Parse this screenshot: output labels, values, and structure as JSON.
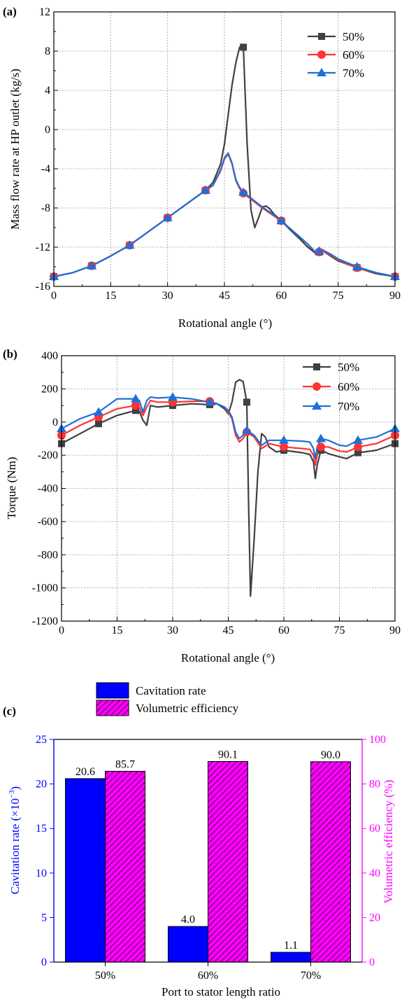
{
  "chart_data": [
    {
      "panel": "(a)",
      "type": "line",
      "xlabel": "Rotational angle (°)",
      "ylabel": "Mass flow rate at HP outlet (kg/s)",
      "xlim": [
        0,
        90
      ],
      "ylim": [
        -16,
        12
      ],
      "xticks": [
        0,
        15,
        30,
        45,
        60,
        75,
        90
      ],
      "yticks": [
        -16,
        -12,
        -8,
        -4,
        0,
        4,
        8,
        12
      ],
      "grid": true,
      "legend": "top-right",
      "series": [
        {
          "name": "50%",
          "color": "#404040",
          "marker": "square",
          "x": [
            0,
            5,
            10,
            15,
            20,
            25,
            30,
            35,
            40,
            42,
            44,
            45,
            46,
            47,
            48,
            49,
            50,
            51,
            52,
            53,
            54,
            55,
            56,
            57,
            58,
            60,
            62,
            65,
            67,
            68,
            69,
            70,
            71,
            73,
            75,
            80,
            85,
            90
          ],
          "y": [
            -15.0,
            -14.6,
            -13.9,
            -12.9,
            -11.8,
            -10.4,
            -9.0,
            -7.6,
            -6.2,
            -5.4,
            -3.5,
            -1.5,
            1.5,
            4.5,
            6.8,
            8.4,
            8.4,
            -1.5,
            -8.2,
            -10.0,
            -9.0,
            -7.9,
            -7.8,
            -8.1,
            -8.6,
            -9.3,
            -10.1,
            -11.2,
            -12.0,
            -12.3,
            -12.6,
            -12.5,
            -12.4,
            -12.9,
            -13.4,
            -14.1,
            -14.7,
            -15.0
          ],
          "marker_x": [
            0,
            10,
            20,
            30,
            40,
            50,
            60,
            70,
            80,
            90
          ]
        },
        {
          "name": "60%",
          "color": "#ff3333",
          "marker": "circle",
          "x": [
            0,
            5,
            10,
            15,
            20,
            25,
            30,
            35,
            40,
            42,
            44,
            45,
            46,
            47,
            48,
            49,
            50,
            52,
            55,
            58,
            60,
            62,
            65,
            67,
            68,
            69,
            70,
            71,
            73,
            75,
            80,
            85,
            90
          ],
          "y": [
            -15.0,
            -14.6,
            -13.9,
            -12.9,
            -11.8,
            -10.4,
            -9.0,
            -7.6,
            -6.2,
            -5.7,
            -4.2,
            -3.0,
            -2.5,
            -3.5,
            -5.2,
            -6.0,
            -6.5,
            -7.1,
            -8.0,
            -8.8,
            -9.3,
            -10.0,
            -11.0,
            -11.7,
            -12.1,
            -12.5,
            -12.5,
            -12.4,
            -12.8,
            -13.3,
            -14.1,
            -14.6,
            -15.0
          ],
          "marker_x": [
            0,
            10,
            20,
            30,
            40,
            50,
            60,
            70,
            80,
            90
          ]
        },
        {
          "name": "70%",
          "color": "#1e6fd9",
          "marker": "triangle",
          "x": [
            0,
            5,
            10,
            15,
            20,
            25,
            30,
            35,
            40,
            42,
            44,
            45,
            46,
            47,
            48,
            49,
            50,
            52,
            55,
            58,
            60,
            62,
            65,
            67,
            68,
            69,
            70,
            71,
            73,
            75,
            80,
            85,
            90
          ],
          "y": [
            -15.0,
            -14.6,
            -13.9,
            -12.9,
            -11.8,
            -10.4,
            -9.0,
            -7.6,
            -6.2,
            -5.7,
            -4.1,
            -2.9,
            -2.4,
            -3.4,
            -5.1,
            -5.9,
            -6.4,
            -7.0,
            -7.9,
            -8.7,
            -9.3,
            -10.0,
            -11.0,
            -11.7,
            -12.1,
            -12.5,
            -12.4,
            -12.3,
            -12.7,
            -13.2,
            -14.0,
            -14.6,
            -15.0
          ],
          "marker_x": [
            0,
            10,
            20,
            30,
            40,
            50,
            60,
            70,
            80,
            90
          ]
        }
      ]
    },
    {
      "panel": "(b)",
      "type": "line",
      "xlabel": "Rotational angle (°)",
      "ylabel": "Torque (Nm)",
      "xlim": [
        0,
        90
      ],
      "ylim": [
        -1200,
        400
      ],
      "xticks": [
        0,
        15,
        30,
        45,
        60,
        75,
        90
      ],
      "yticks": [
        -1200,
        -1000,
        -800,
        -600,
        -400,
        -200,
        0,
        200,
        400
      ],
      "grid": true,
      "legend": "top-right",
      "series": [
        {
          "name": "50%",
          "color": "#404040",
          "marker": "square",
          "x": [
            0,
            5,
            10,
            15,
            20,
            21,
            22,
            23,
            24,
            26,
            30,
            35,
            40,
            42,
            44,
            45,
            46,
            47,
            48,
            49,
            50,
            50.5,
            51,
            52,
            53,
            54,
            55,
            56,
            58,
            60,
            65,
            67,
            68,
            68.5,
            69,
            70,
            72,
            75,
            77,
            80,
            85,
            90
          ],
          "y": [
            -130,
            -70,
            -10,
            40,
            70,
            65,
            10,
            -20,
            100,
            90,
            100,
            110,
            105,
            110,
            80,
            50,
            120,
            240,
            255,
            245,
            120,
            -500,
            -1050,
            -700,
            -300,
            -70,
            -90,
            -150,
            -180,
            -170,
            -185,
            -195,
            -240,
            -340,
            -260,
            -170,
            -190,
            -210,
            -220,
            -185,
            -170,
            -130
          ],
          "marker_x": [
            0,
            10,
            20,
            30,
            40,
            50,
            60,
            70,
            80,
            90
          ]
        },
        {
          "name": "60%",
          "color": "#ff3333",
          "marker": "circle",
          "x": [
            0,
            5,
            10,
            15,
            20,
            21,
            22,
            23,
            24,
            26,
            30,
            35,
            40,
            42,
            44,
            45,
            46,
            47,
            48,
            49,
            50,
            52,
            54,
            56,
            58,
            60,
            65,
            67,
            68,
            68.5,
            69,
            70,
            72,
            75,
            77,
            80,
            85,
            90
          ],
          "y": [
            -80,
            -20,
            30,
            80,
            100,
            90,
            40,
            90,
            130,
            120,
            120,
            125,
            125,
            110,
            90,
            60,
            20,
            -80,
            -120,
            -100,
            -60,
            -90,
            -160,
            -130,
            -140,
            -150,
            -160,
            -165,
            -200,
            -260,
            -200,
            -150,
            -150,
            -175,
            -180,
            -150,
            -130,
            -80
          ],
          "marker_x": [
            0,
            10,
            20,
            30,
            40,
            50,
            60,
            70,
            80,
            90
          ]
        },
        {
          "name": "70%",
          "color": "#1e6fd9",
          "marker": "triangle",
          "x": [
            0,
            5,
            10,
            15,
            20,
            21,
            22,
            23,
            24,
            26,
            30,
            35,
            40,
            42,
            44,
            45,
            46,
            47,
            48,
            49,
            50,
            52,
            54,
            56,
            58,
            60,
            65,
            67,
            68,
            68.5,
            69,
            70,
            72,
            75,
            77,
            80,
            85,
            90
          ],
          "y": [
            -40,
            20,
            60,
            140,
            140,
            130,
            60,
            130,
            150,
            145,
            150,
            140,
            120,
            110,
            90,
            70,
            30,
            -60,
            -100,
            -80,
            -50,
            -80,
            -140,
            -110,
            -110,
            -110,
            -115,
            -120,
            -160,
            -220,
            -150,
            -100,
            -110,
            -140,
            -145,
            -110,
            -90,
            -40
          ],
          "marker_x": [
            0,
            10,
            20,
            30,
            40,
            50,
            60,
            70,
            80,
            90
          ]
        }
      ]
    },
    {
      "panel": "(c)",
      "type": "bar",
      "xlabel": "Port to stator length ratio",
      "ylabel_left": "Cavitation rate (×10",
      "ylabel_left_sup": "−3",
      "ylabel_left_end": ")",
      "ylabel_right": "Volumetric efficiency (%)",
      "categories": [
        "50%",
        "60%",
        "70%"
      ],
      "ylim_left": [
        0,
        25
      ],
      "ylim_right": [
        0,
        100
      ],
      "yticks_left": [
        0,
        5,
        10,
        15,
        20,
        25
      ],
      "yticks_right": [
        0,
        20,
        40,
        60,
        80,
        100
      ],
      "left_axis_color": "#0000ff",
      "right_axis_color": "#ff00ff",
      "legend": "top-center",
      "series": [
        {
          "name": "Cavitation rate",
          "axis": "left",
          "color": "#0000ff",
          "hatch": false,
          "values": [
            20.6,
            4.0,
            1.1
          ],
          "labels": [
            "20.6",
            "4.0",
            "1.1"
          ]
        },
        {
          "name": "Volumetric efficiency",
          "axis": "right",
          "color": "#ff00ff",
          "hatch": true,
          "values": [
            85.7,
            90.1,
            90.0
          ],
          "labels": [
            "85.7",
            "90.1",
            "90.0"
          ]
        }
      ]
    }
  ]
}
